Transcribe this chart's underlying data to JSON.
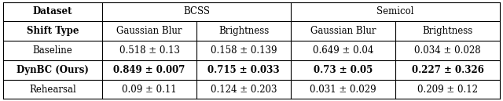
{
  "col_headers_row1": [
    "Dataset",
    "BCSS",
    "Semicol"
  ],
  "col_headers_row2": [
    "Shift Type",
    "Gaussian Blur",
    "Brightness",
    "Gaussian Blur",
    "Brightness"
  ],
  "rows": [
    [
      "Baseline",
      "0.518 ± 0.13",
      "0.158 ± 0.139",
      "0.649 ± 0.04",
      "0.034 ± 0.028"
    ],
    [
      "DynBC (Ours)",
      "0.849 ± 0.007",
      "0.715 ± 0.033",
      "0.73 ± 0.05",
      "0.227 ± 0.326"
    ],
    [
      "Rehearsal",
      "0.09 ± 0.11",
      "0.124 ± 0.203",
      "0.031 ± 0.029",
      "0.209 ± 0.12"
    ]
  ],
  "bold_row_index": 1,
  "background_color": "#ffffff",
  "line_color": "#000000",
  "font_size": 8.5,
  "fig_width": 6.4,
  "fig_height": 1.29,
  "dpi": 100
}
